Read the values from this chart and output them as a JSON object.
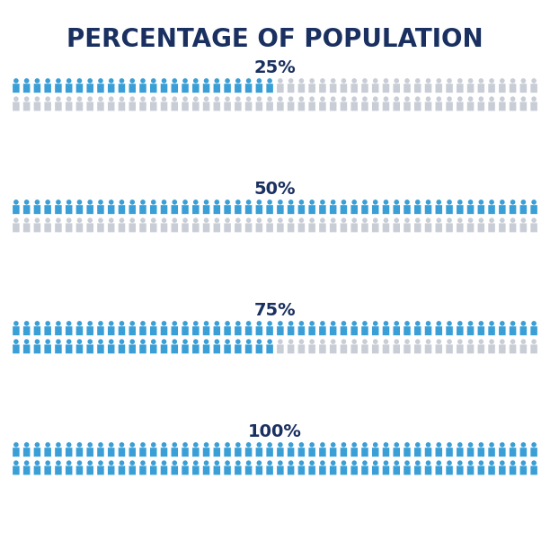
{
  "title": "PERCENTAGE OF POPULATION",
  "title_color": "#1a3060",
  "title_fontsize": 20,
  "background_color": "#ffffff",
  "sections": [
    {
      "label": "25%",
      "percent": 25
    },
    {
      "label": "50%",
      "percent": 50
    },
    {
      "label": "75%",
      "percent": 75
    },
    {
      "label": "100%",
      "percent": 100
    }
  ],
  "active_color": "#3a9fd6",
  "inactive_color": "#c8cdd6",
  "label_color": "#1a3060",
  "label_fontsize": 14,
  "total_people": 100,
  "cols": 50,
  "rows": 2,
  "fig_w": 6.12,
  "fig_h": 6.12,
  "dpi": 100
}
